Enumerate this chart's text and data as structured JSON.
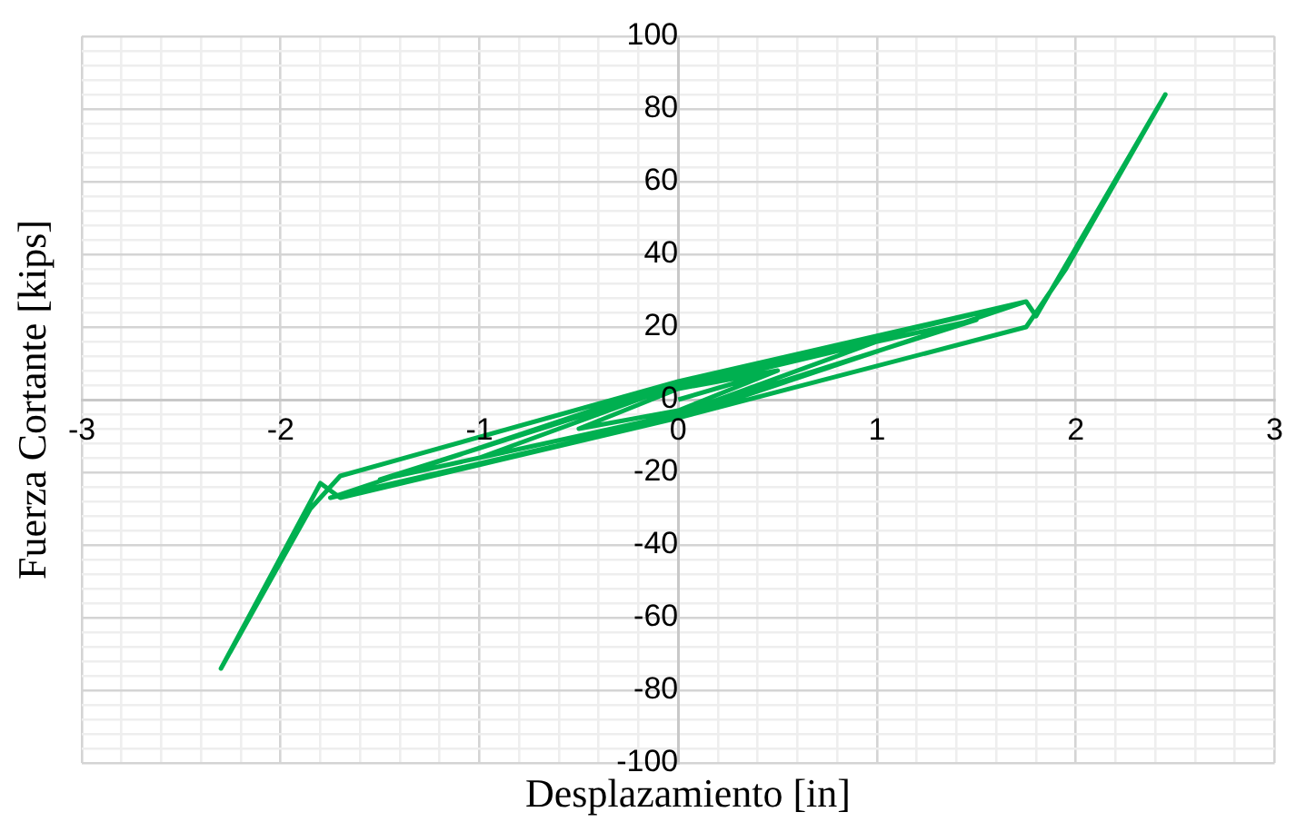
{
  "chart_data": {
    "type": "line",
    "xlabel": "Desplazamiento [in]",
    "ylabel": "Fuerza Cortante [kips]",
    "series": [
      {
        "color": "#00b050",
        "x": [
          0,
          0.5,
          0,
          -0.5,
          0,
          0.5,
          0,
          -0.5,
          0,
          1.0,
          0,
          -1.0,
          0,
          1.0,
          0,
          -1.0,
          0,
          1.5,
          0,
          -1.5,
          0,
          1.5,
          0,
          -1.5,
          0,
          1.75,
          0,
          -1.75,
          0,
          1.75,
          1.8,
          2.45,
          1.95,
          1.75,
          0,
          -1.7,
          -1.8,
          -2.3,
          -1.85,
          -1.7,
          0
        ],
        "values": [
          0,
          8,
          -3,
          -8,
          3,
          8,
          -3,
          -8,
          3,
          16,
          -4,
          -16,
          4,
          16,
          -4,
          -16,
          4,
          22,
          -4,
          -22,
          4,
          22,
          -4,
          -22,
          4,
          27,
          -5,
          -27,
          5,
          27,
          23,
          84,
          36,
          20,
          -5,
          -27,
          -23,
          -74,
          -30,
          -21,
          5
        ]
      }
    ],
    "xlim": [
      -3,
      3
    ],
    "xticks": [
      -3,
      {
        "value": -2.8,
        "label": null
      },
      {
        "value": -2.6,
        "label": null
      },
      {
        "value": -2.4,
        "label": null
      },
      {
        "value": -2.2,
        "label": null
      },
      -2,
      {
        "value": -1.8,
        "label": null
      },
      {
        "value": -1.6,
        "label": null
      },
      {
        "value": -1.4,
        "label": null
      },
      {
        "value": -1.2,
        "label": null
      },
      -1,
      {
        "value": -0.8,
        "label": null
      },
      {
        "value": -0.6,
        "label": null
      },
      {
        "value": -0.4,
        "label": null
      },
      {
        "value": -0.2,
        "label": null
      },
      0,
      {
        "value": 0.2,
        "label": null
      },
      {
        "value": 0.4,
        "label": null
      },
      {
        "value": 0.6,
        "label": null
      },
      {
        "value": 0.8,
        "label": null
      },
      1,
      {
        "value": 1.2,
        "label": null
      },
      {
        "value": 1.4,
        "label": null
      },
      {
        "value": 1.6,
        "label": null
      },
      {
        "value": 1.8,
        "label": null
      },
      2,
      {
        "value": 2.2,
        "label": null
      },
      {
        "value": 2.4,
        "label": null
      },
      {
        "value": 2.6,
        "label": null
      },
      {
        "value": 2.8,
        "label": null
      },
      3
    ],
    "ylim": [
      -100,
      100
    ],
    "yticks": [
      -100,
      {
        "value": -96,
        "label": null
      },
      {
        "value": -92,
        "label": null
      },
      {
        "value": -88,
        "label": null
      },
      {
        "value": -84,
        "label": null
      },
      -80,
      {
        "value": -76,
        "label": null
      },
      {
        "value": -72,
        "label": null
      },
      {
        "value": -68,
        "label": null
      },
      {
        "value": -64,
        "label": null
      },
      -60,
      {
        "value": -56,
        "label": null
      },
      {
        "value": -52,
        "label": null
      },
      {
        "value": -48,
        "label": null
      },
      {
        "value": -44,
        "label": null
      },
      -40,
      {
        "value": -36,
        "label": null
      },
      {
        "value": -32,
        "label": null
      },
      {
        "value": -28,
        "label": null
      },
      {
        "value": -24,
        "label": null
      },
      -20,
      {
        "value": -16,
        "label": null
      },
      {
        "value": -12,
        "label": null
      },
      {
        "value": -8,
        "label": null
      },
      {
        "value": -4,
        "label": null
      },
      0,
      {
        "value": 4,
        "label": null
      },
      {
        "value": 8,
        "label": null
      },
      {
        "value": 12,
        "label": null
      },
      {
        "value": 16,
        "label": null
      },
      20,
      {
        "value": 24,
        "label": null
      },
      {
        "value": 28,
        "label": null
      },
      {
        "value": 32,
        "label": null
      },
      {
        "value": 36,
        "label": null
      },
      40,
      {
        "value": 44,
        "label": null
      },
      {
        "value": 48,
        "label": null
      },
      {
        "value": 52,
        "label": null
      },
      {
        "value": 56,
        "label": null
      },
      60,
      {
        "value": 64,
        "label": null
      },
      {
        "value": 68,
        "label": null
      },
      {
        "value": 72,
        "label": null
      },
      {
        "value": 76,
        "label": null
      },
      80,
      {
        "value": 84,
        "label": null
      },
      {
        "value": 88,
        "label": null
      },
      {
        "value": 92,
        "label": null
      },
      {
        "value": 96,
        "label": null
      },
      100
    ],
    "grid": true,
    "marker": "none",
    "line_style": "solid"
  }
}
